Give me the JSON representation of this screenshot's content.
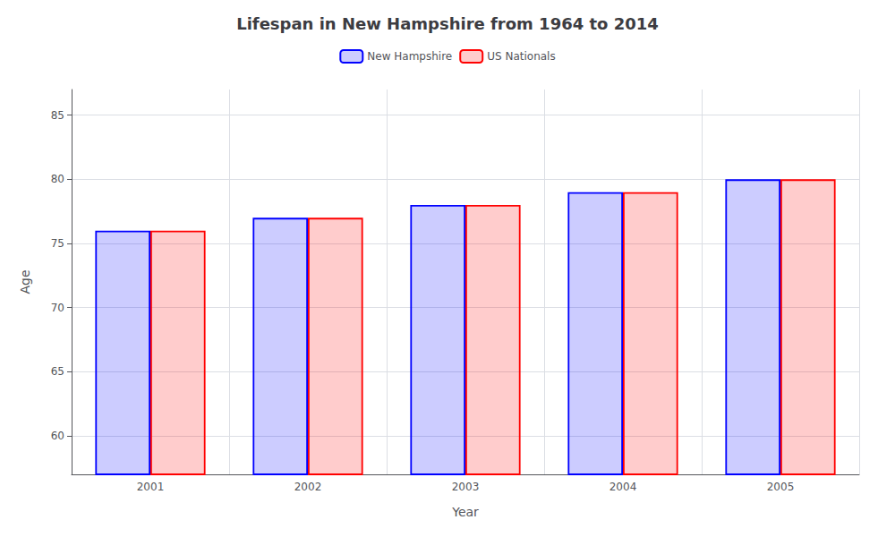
{
  "chart_data": {
    "type": "bar",
    "title": "Lifespan in New Hampshire from 1964 to 2014",
    "x_label": "Year",
    "y_label": "Age",
    "categories": [
      "2001",
      "2002",
      "2003",
      "2004",
      "2005"
    ],
    "series": [
      {
        "name": "New Hampshire",
        "color": "#0000ff",
        "values": [
          76.0,
          77.0,
          78.0,
          79.0,
          80.0
        ]
      },
      {
        "name": "US Nationals",
        "color": "#ff0000",
        "values": [
          76.0,
          77.0,
          78.0,
          79.0,
          80.0
        ]
      }
    ],
    "ylim": [
      57,
      87
    ],
    "yticks": [
      60,
      65,
      70,
      75,
      80,
      85
    ],
    "grid": true,
    "legend": "top"
  }
}
